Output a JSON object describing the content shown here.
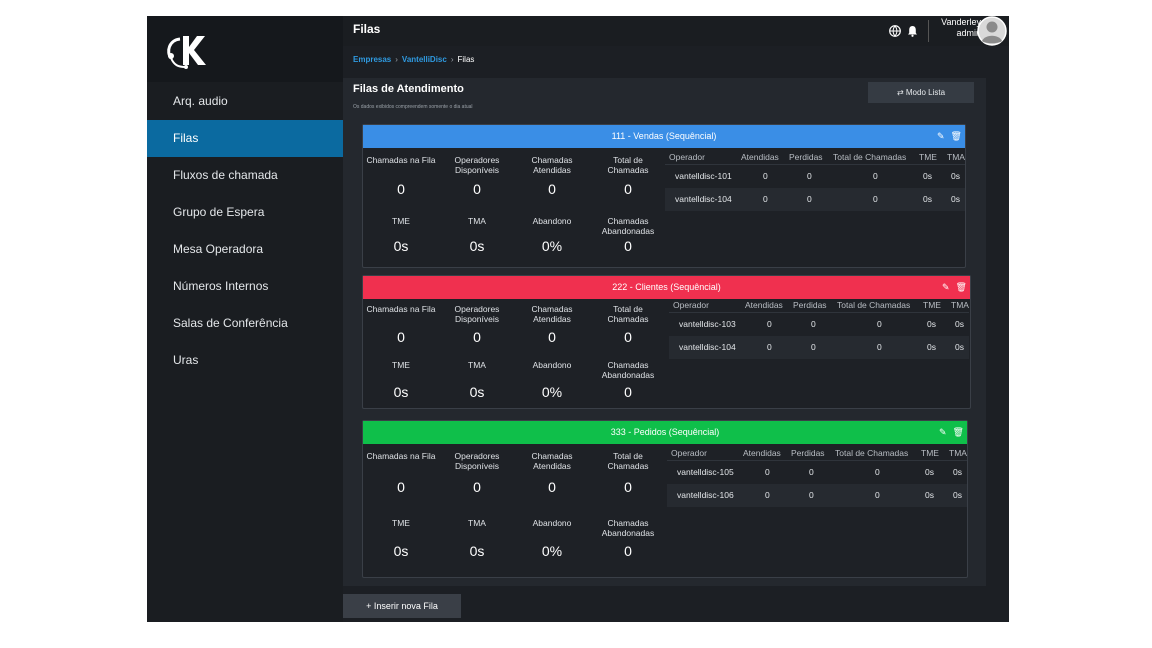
{
  "sidebar": {
    "items": [
      {
        "label": "Arq. audio",
        "active": false
      },
      {
        "label": "Filas",
        "active": true
      },
      {
        "label": "Fluxos de chamada",
        "active": false
      },
      {
        "label": "Grupo de Espera",
        "active": false
      },
      {
        "label": "Mesa Operadora",
        "active": false
      },
      {
        "label": "Números Internos",
        "active": false
      },
      {
        "label": "Salas de Conferência",
        "active": false
      },
      {
        "label": "Uras",
        "active": false
      }
    ]
  },
  "header": {
    "title": "Filas",
    "user_name": "Vanderley",
    "user_role": "admin"
  },
  "breadcrumb": [
    "Empresas",
    "VantelliDisc",
    "Filas"
  ],
  "section": {
    "title": "Filas de Atendimento",
    "subtitle": "Os dados exibidos compreendem somente o dia atual",
    "mode_button": "Modo Lista"
  },
  "stat_labels": {
    "waiting": "Chamadas na Fila",
    "available": "Operadores Disponíveis",
    "answered": "Chamadas Atendidas",
    "total": "Total de Chamadas",
    "tme": "TME",
    "tma": "TMA",
    "abandon": "Abandono",
    "abandoned": "Chamadas Abandonadas"
  },
  "table_headers": [
    "Operador",
    "Atendidas",
    "Perdidas",
    "Total de Chamadas",
    "TME",
    "TMA"
  ],
  "queues": [
    {
      "title": "111 - Vendas (Sequêncial)",
      "color": "#3a8ee6",
      "stats": {
        "waiting": "0",
        "available": "0",
        "answered": "0",
        "total": "0",
        "tme": "0s",
        "tma": "0s",
        "abandon": "0%",
        "abandoned": "0"
      },
      "operators": [
        {
          "name": "vantelldisc-101",
          "atendidas": "0",
          "perdidas": "0",
          "total": "0",
          "tme": "0s",
          "tma": "0s"
        },
        {
          "name": "vantelldisc-104",
          "atendidas": "0",
          "perdidas": "0",
          "total": "0",
          "tme": "0s",
          "tma": "0s"
        }
      ]
    },
    {
      "title": "222 - Clientes (Sequêncial)",
      "color": "#f0304f",
      "stats": {
        "waiting": "0",
        "available": "0",
        "answered": "0",
        "total": "0",
        "tme": "0s",
        "tma": "0s",
        "abandon": "0%",
        "abandoned": "0"
      },
      "operators": [
        {
          "name": "vantelldisc-103",
          "atendidas": "0",
          "perdidas": "0",
          "total": "0",
          "tme": "0s",
          "tma": "0s"
        },
        {
          "name": "vantelldisc-104",
          "atendidas": "0",
          "perdidas": "0",
          "total": "0",
          "tme": "0s",
          "tma": "0s"
        }
      ]
    },
    {
      "title": "333 - Pedidos (Sequêncial)",
      "color": "#0fbf4a",
      "stats": {
        "waiting": "0",
        "available": "0",
        "answered": "0",
        "total": "0",
        "tme": "0s",
        "tma": "0s",
        "abandon": "0%",
        "abandoned": "0"
      },
      "operators": [
        {
          "name": "vantelldisc-105",
          "atendidas": "0",
          "perdidas": "0",
          "total": "0",
          "tme": "0s",
          "tma": "0s"
        },
        {
          "name": "vantelldisc-106",
          "atendidas": "0",
          "perdidas": "0",
          "total": "0",
          "tme": "0s",
          "tma": "0s"
        }
      ]
    }
  ],
  "insert_button": "+ Inserir nova Fila"
}
